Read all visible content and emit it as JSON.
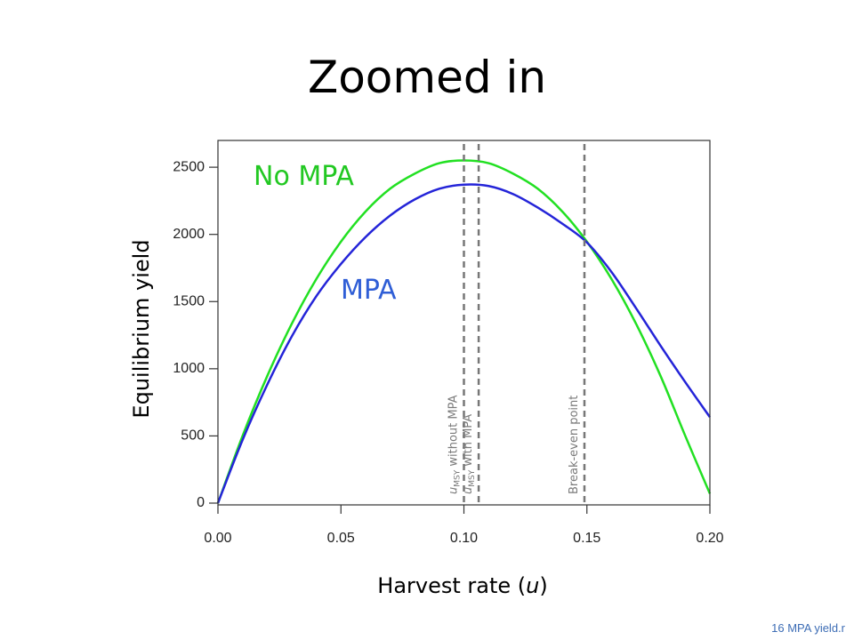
{
  "slide": {
    "title": "Zoomed in",
    "footer": "16 MPA yield.r"
  },
  "chart_data": {
    "type": "line",
    "xlabel_prefix": "Harvest rate (",
    "xlabel_var": "u",
    "xlabel_suffix": ")",
    "ylabel": "Equilibrium yield",
    "xlim": [
      0,
      0.2
    ],
    "ylim": [
      0,
      2600
    ],
    "xticks": [
      "0.00",
      "0.05",
      "0.10",
      "0.15",
      "0.20"
    ],
    "xtick_values": [
      0,
      0.05,
      0.1,
      0.15,
      0.2
    ],
    "yticks": [
      0,
      500,
      1000,
      1500,
      2000,
      2500
    ],
    "grid": false,
    "series": [
      {
        "name": "No MPA",
        "color": "#22e022",
        "x": [
          0,
          0.01,
          0.02,
          0.03,
          0.04,
          0.05,
          0.06,
          0.07,
          0.08,
          0.09,
          0.1,
          0.11,
          0.12,
          0.13,
          0.14,
          0.15,
          0.16,
          0.17,
          0.18,
          0.19,
          0.2
        ],
        "y": [
          0,
          500,
          944,
          1334,
          1668,
          1946,
          2170,
          2340,
          2452,
          2530,
          2550,
          2530,
          2452,
          2340,
          2170,
          1946,
          1668,
          1334,
          944,
          500,
          70
        ]
      },
      {
        "name": "MPA",
        "color": "#2424d8",
        "x": [
          0,
          0.01,
          0.02,
          0.03,
          0.04,
          0.05,
          0.06,
          0.07,
          0.08,
          0.09,
          0.1,
          0.11,
          0.12,
          0.13,
          0.14,
          0.15,
          0.16,
          0.17,
          0.18,
          0.19,
          0.2
        ],
        "y": [
          0,
          470,
          880,
          1240,
          1540,
          1780,
          1980,
          2140,
          2260,
          2340,
          2370,
          2360,
          2300,
          2200,
          2080,
          1940,
          1720,
          1450,
          1170,
          900,
          640
        ]
      }
    ],
    "reference_lines": [
      {
        "x": 0.1,
        "label_var": "u",
        "label_sub": "MSY",
        "label_text": " without MPA"
      },
      {
        "x": 0.106,
        "label_var": "u",
        "label_sub": "MSY",
        "label_text": " with MPA"
      },
      {
        "x": 0.149,
        "label_var": "",
        "label_sub": "",
        "label_text": "Break-even point"
      }
    ]
  }
}
